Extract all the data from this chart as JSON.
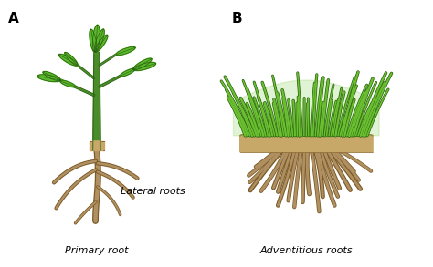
{
  "background_color": "#ffffff",
  "label_A": "A",
  "label_B": "B",
  "label_primary": "Primary root",
  "label_lateral": "Lateral roots",
  "label_adventitious": "Adventitious roots",
  "stem_green": "#4a8c2a",
  "stem_dark_green": "#2a5e10",
  "leaf_fill": "#5ab82a",
  "leaf_outline": "#2a6010",
  "root_fill": "#b09060",
  "root_outline": "#7a5a28",
  "soil_fill": "#c8a868",
  "soil_outline": "#8a6830",
  "grass_fill": "#6abf30",
  "grass_outline": "#2a6010",
  "label_fontsize": 8,
  "panel_label_fontsize": 11
}
